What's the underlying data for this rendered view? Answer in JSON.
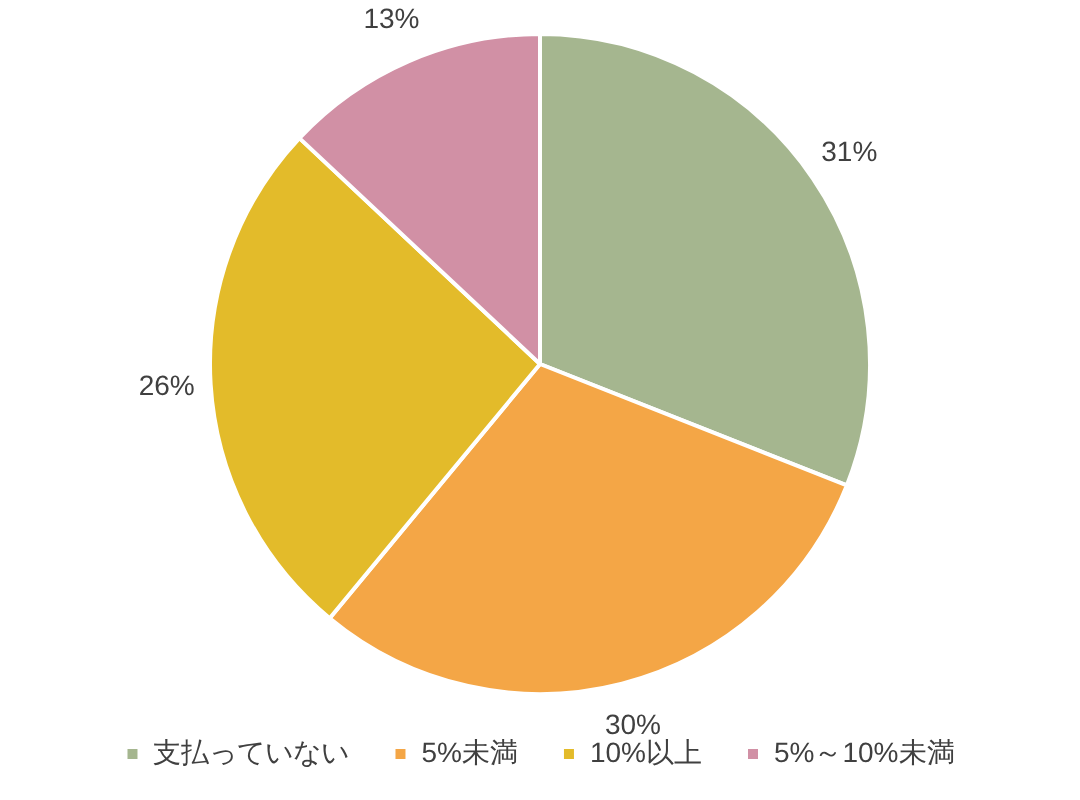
{
  "chart_data": {
    "type": "pie",
    "categories": [
      "支払っていない",
      "5%未満",
      "10%以上",
      "5%～10%未満"
    ],
    "values": [
      31,
      30,
      26,
      13
    ],
    "colors": [
      "#a5b68f",
      "#f4a646",
      "#e3bb2a",
      "#d190a5"
    ],
    "value_labels": [
      "31%",
      "30%",
      "26%",
      "13%"
    ],
    "legend": "bottom"
  }
}
